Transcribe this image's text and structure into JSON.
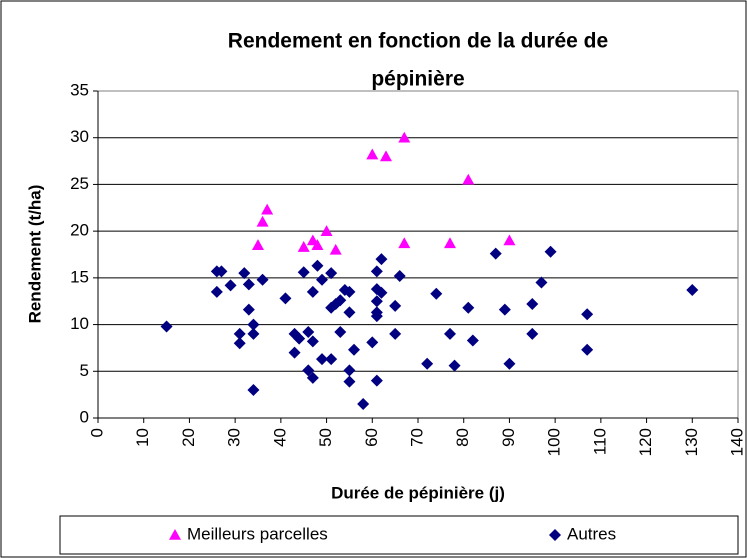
{
  "chart_data": {
    "type": "scatter",
    "title_lines": [
      "Rendement en fonction de la durée de",
      "pépinière"
    ],
    "x_label": "Durée de pépinière (j)",
    "y_label": "Rendement (t/ha)",
    "xlim": [
      0,
      140
    ],
    "xticks": [
      0,
      10,
      20,
      30,
      40,
      50,
      60,
      70,
      80,
      90,
      100,
      110,
      120,
      130,
      140
    ],
    "ylim": [
      0,
      35
    ],
    "yticks": [
      0,
      5,
      10,
      15,
      20,
      25,
      30,
      35
    ],
    "grid": true,
    "legend": "bottom",
    "series": [
      {
        "name": "Meilleurs parcelles",
        "color": "#ff00ff",
        "marker": "triangle",
        "x": [
          35,
          36,
          37,
          45,
          47,
          48,
          50,
          52,
          60,
          63,
          67,
          67,
          77,
          81,
          90
        ],
        "values": [
          18.5,
          21,
          22.3,
          18.3,
          19,
          18.5,
          20,
          18,
          28.2,
          28,
          30,
          18.7,
          18.7,
          25.5,
          19
        ]
      },
      {
        "name": "Autres",
        "color": "#000080",
        "marker": "diamond",
        "x": [
          15,
          26,
          26,
          27,
          29,
          31,
          31,
          32,
          33,
          33,
          34,
          34,
          34,
          36,
          41,
          43,
          43,
          44,
          45,
          46,
          46,
          47,
          47,
          47,
          48,
          49,
          49,
          51,
          51,
          51,
          52,
          53,
          53,
          54,
          55,
          55,
          55,
          55,
          56,
          58,
          60,
          61,
          61,
          61,
          61,
          61,
          61,
          62,
          62,
          65,
          65,
          66,
          72,
          74,
          77,
          78,
          81,
          82,
          87,
          89,
          90,
          95,
          95,
          97,
          99,
          107,
          107,
          130
        ],
        "values": [
          9.8,
          15.7,
          13.5,
          15.7,
          14.2,
          9,
          8,
          15.5,
          14.3,
          11.6,
          10,
          9,
          3,
          14.8,
          12.8,
          9,
          7,
          8.5,
          15.6,
          9.2,
          5.1,
          13.5,
          8.2,
          4.3,
          16.3,
          14.8,
          6.3,
          15.5,
          11.8,
          6.3,
          12.2,
          12.6,
          9.2,
          13.7,
          13.5,
          11.3,
          5.1,
          3.9,
          7.3,
          1.5,
          8.1,
          15.7,
          13.8,
          12.5,
          11.3,
          10.9,
          4,
          17,
          13.4,
          12,
          9,
          15.2,
          5.8,
          13.3,
          9,
          5.6,
          11.8,
          8.3,
          17.6,
          11.6,
          5.8,
          12.2,
          9,
          14.5,
          17.8,
          11.1,
          7.3,
          13.7
        ]
      }
    ]
  }
}
